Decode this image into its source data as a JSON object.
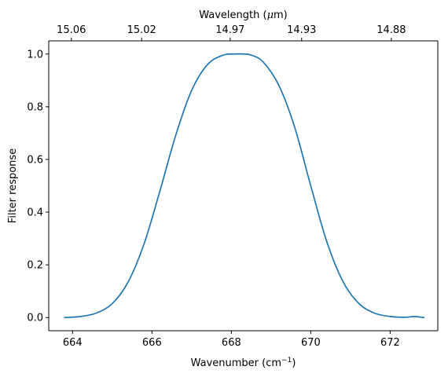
{
  "chart_data": {
    "type": "line",
    "xlabel": "Wavenumber (cm",
    "xlabel_sup": "−1",
    "xlabel_end": ")",
    "x2label": "Wavelength (",
    "x2label_mu": "μ",
    "x2label_end": "m)",
    "ylabel": "Filter response",
    "xlim": [
      663.4,
      673.2
    ],
    "ylim": [
      -0.05,
      1.05
    ],
    "xticks": [
      664,
      666,
      668,
      670,
      672
    ],
    "xtick_labels": [
      "664",
      "666",
      "668",
      "670",
      "672"
    ],
    "yticks": [
      0.0,
      0.2,
      0.4,
      0.6,
      0.8,
      1.0
    ],
    "ytick_labels": [
      "0.0",
      "0.2",
      "0.4",
      "0.6",
      "0.8",
      "1.0"
    ],
    "x2ticks": [
      {
        "at": 663.97,
        "label": "15.06"
      },
      {
        "at": 665.74,
        "label": "15.02"
      },
      {
        "at": 667.97,
        "label": "14.97"
      },
      {
        "at": 669.77,
        "label": "14.93"
      },
      {
        "at": 672.03,
        "label": "14.88"
      }
    ],
    "grid": false,
    "colors": {
      "series": "#1f77b4",
      "axes": "#000000",
      "background": "#ffffff"
    },
    "series": [
      {
        "x": [
          663.8,
          664.2,
          664.6,
          665.0,
          665.4,
          665.8,
          666.2,
          666.6,
          667.0,
          667.4,
          667.8,
          668.1,
          668.3,
          668.5,
          668.8,
          669.2,
          669.6,
          670.0,
          670.4,
          670.8,
          671.2,
          671.6,
          672.0,
          672.4,
          672.6,
          672.85
        ],
        "y": [
          0.0,
          0.004,
          0.017,
          0.053,
          0.135,
          0.279,
          0.48,
          0.692,
          0.862,
          0.96,
          0.996,
          1.0,
          1.0,
          0.996,
          0.97,
          0.88,
          0.72,
          0.5,
          0.29,
          0.14,
          0.055,
          0.017,
          0.004,
          0.001,
          0.004,
          0.0
        ]
      }
    ]
  }
}
